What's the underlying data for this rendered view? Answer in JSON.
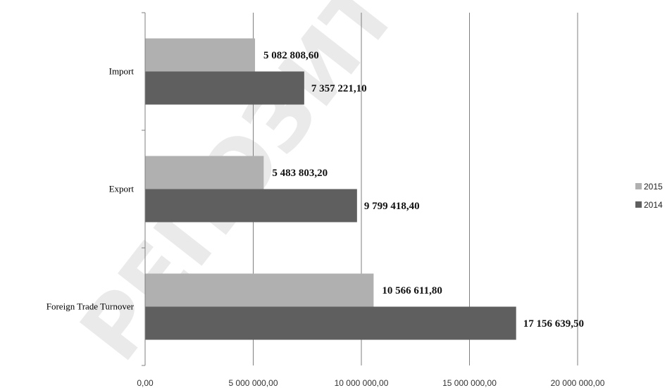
{
  "chart_data": {
    "type": "bar",
    "orientation": "horizontal",
    "categories": [
      "Import",
      "Export",
      "Foreign Trade Turnover"
    ],
    "series": [
      {
        "name": "2015",
        "color": "#b0b0b0",
        "values": [
          5082808.6,
          5483803.2,
          10566611.8
        ],
        "labels": [
          "5 082 808,60",
          "5 483 803,20",
          "10 566 611,80"
        ]
      },
      {
        "name": "2014",
        "color": "#5f5f5f",
        "values": [
          7357221.1,
          9799418.4,
          17156639.5
        ],
        "labels": [
          "7 357 221,10",
          "9 799 418,40",
          "17 156 639,50"
        ]
      }
    ],
    "xlim": [
      0,
      20000000
    ],
    "ticks": [
      0,
      5000000,
      10000000,
      15000000,
      20000000
    ],
    "tick_labels": [
      "0,00",
      "5 000 000,00",
      "10 000 000,00",
      "15 000 000,00",
      "20 000 000,00"
    ],
    "grid": true,
    "legend_position": "right"
  },
  "watermark": {
    "text": "РЕПОЗИТОРИЙ"
  }
}
